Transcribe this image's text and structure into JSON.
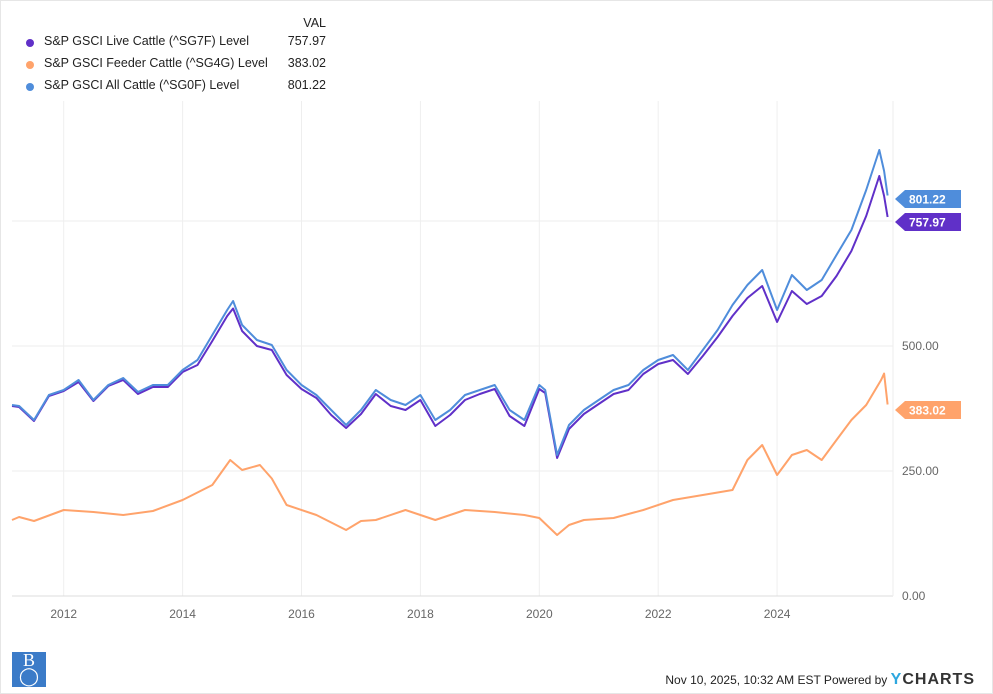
{
  "chart_data": {
    "type": "line",
    "title": "",
    "legend_header": "VAL",
    "legend_placement": "top-left",
    "xlabel": "",
    "ylabel": "",
    "xlim": [
      2011.13,
      2025.95
    ],
    "ylim": [
      0,
      990
    ],
    "x_ticks": [
      "2012",
      "2014",
      "2016",
      "2018",
      "2020",
      "2022",
      "2024"
    ],
    "x_tick_values": [
      2012,
      2014,
      2016,
      2018,
      2020,
      2022,
      2024
    ],
    "y_ticks": [
      "0.00",
      "250.00",
      "500.00"
    ],
    "y_tick_values": [
      0,
      250,
      500
    ],
    "y_grid_values": [
      0,
      250,
      500,
      750
    ],
    "grid": true,
    "series": [
      {
        "name": "S&P GSCI Live Cattle (^SG7F) Level",
        "last_value": "757.97",
        "color": "#6030c8",
        "x": [
          2011.13,
          2011.25,
          2011.5,
          2011.75,
          2012.0,
          2012.25,
          2012.5,
          2012.75,
          2013.0,
          2013.25,
          2013.5,
          2013.75,
          2014.0,
          2014.25,
          2014.5,
          2014.75,
          2014.85,
          2015.0,
          2015.25,
          2015.5,
          2015.75,
          2016.0,
          2016.25,
          2016.5,
          2016.75,
          2017.0,
          2017.25,
          2017.5,
          2017.75,
          2018.0,
          2018.25,
          2018.5,
          2018.75,
          2019.0,
          2019.25,
          2019.5,
          2019.75,
          2020.0,
          2020.1,
          2020.3,
          2020.5,
          2020.75,
          2021.0,
          2021.25,
          2021.5,
          2021.75,
          2022.0,
          2022.25,
          2022.5,
          2022.75,
          2023.0,
          2023.25,
          2023.5,
          2023.75,
          2024.0,
          2024.25,
          2024.5,
          2024.75,
          2025.0,
          2025.25,
          2025.5,
          2025.72,
          2025.8,
          2025.86
        ],
        "y": [
          380,
          378,
          350,
          400,
          410,
          428,
          390,
          420,
          432,
          404,
          418,
          418,
          448,
          462,
          510,
          560,
          575,
          530,
          500,
          492,
          442,
          414,
          396,
          362,
          336,
          364,
          404,
          380,
          372,
          392,
          340,
          362,
          392,
          404,
          414,
          360,
          340,
          414,
          406,
          276,
          334,
          364,
          384,
          404,
          412,
          444,
          464,
          472,
          444,
          480,
          518,
          560,
          596,
          620,
          548,
          610,
          584,
          600,
          640,
          690,
          760,
          840,
          800,
          758
        ]
      },
      {
        "name": "S&P GSCI Feeder Cattle (^SG4G) Level",
        "last_value": "383.02",
        "color": "#ffa36b",
        "x": [
          2011.13,
          2011.25,
          2011.5,
          2012.0,
          2012.5,
          2013.0,
          2013.5,
          2014.0,
          2014.5,
          2014.8,
          2015.0,
          2015.3,
          2015.5,
          2015.75,
          2016.25,
          2016.75,
          2017.0,
          2017.25,
          2017.75,
          2018.25,
          2018.75,
          2019.25,
          2019.75,
          2020.0,
          2020.3,
          2020.5,
          2020.75,
          2021.25,
          2021.75,
          2022.25,
          2022.75,
          2023.25,
          2023.5,
          2023.75,
          2024.0,
          2024.25,
          2024.5,
          2024.75,
          2025.0,
          2025.25,
          2025.5,
          2025.75,
          2025.8,
          2025.86
        ],
        "y": [
          152,
          158,
          150,
          172,
          168,
          162,
          170,
          192,
          222,
          272,
          252,
          262,
          235,
          182,
          162,
          132,
          150,
          152,
          172,
          152,
          172,
          168,
          162,
          156,
          122,
          142,
          152,
          156,
          172,
          192,
          202,
          212,
          272,
          302,
          242,
          282,
          292,
          272,
          312,
          352,
          382,
          432,
          445,
          383
        ]
      },
      {
        "name": "S&P GSCI All Cattle (^SG0F) Level",
        "last_value": "801.22",
        "color": "#4f8ddb",
        "x": [
          2011.13,
          2011.25,
          2011.5,
          2011.75,
          2012.0,
          2012.25,
          2012.5,
          2012.75,
          2013.0,
          2013.25,
          2013.5,
          2013.75,
          2014.0,
          2014.25,
          2014.5,
          2014.75,
          2014.85,
          2015.0,
          2015.25,
          2015.5,
          2015.75,
          2016.0,
          2016.25,
          2016.5,
          2016.75,
          2017.0,
          2017.25,
          2017.5,
          2017.75,
          2018.0,
          2018.25,
          2018.5,
          2018.75,
          2019.0,
          2019.25,
          2019.5,
          2019.75,
          2020.0,
          2020.1,
          2020.3,
          2020.5,
          2020.75,
          2021.0,
          2021.25,
          2021.5,
          2021.75,
          2022.0,
          2022.25,
          2022.5,
          2022.75,
          2023.0,
          2023.25,
          2023.5,
          2023.75,
          2024.0,
          2024.25,
          2024.5,
          2024.75,
          2025.0,
          2025.25,
          2025.5,
          2025.72,
          2025.8,
          2025.86
        ],
        "y": [
          382,
          380,
          352,
          402,
          412,
          432,
          392,
          422,
          436,
          408,
          422,
          422,
          452,
          472,
          522,
          572,
          590,
          542,
          512,
          502,
          452,
          422,
          402,
          372,
          342,
          372,
          412,
          392,
          382,
          402,
          352,
          372,
          402,
          412,
          422,
          372,
          352,
          422,
          412,
          282,
          342,
          372,
          392,
          412,
          422,
          452,
          472,
          482,
          452,
          492,
          532,
          582,
          622,
          652,
          572,
          642,
          612,
          632,
          682,
          732,
          812,
          892,
          850,
          801
        ]
      }
    ]
  },
  "footer": {
    "timestamp": "Nov 10, 2025, 10:32 AM EST Powered by",
    "brand_y": "Y",
    "brand_rest": "CHARTS",
    "logo_text": "B"
  }
}
